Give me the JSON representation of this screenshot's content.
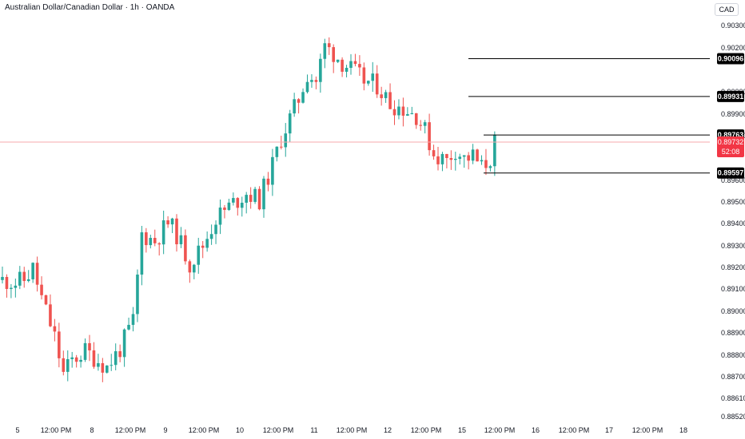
{
  "header": {
    "title": "Australian Dollar/Canadian Dollar · 1h · OANDA",
    "currency_label": "CAD"
  },
  "colors": {
    "up": "#26a69a",
    "down": "#ef5350",
    "level_line": "#000000",
    "level_label_bg": "#000000",
    "price_label_bg": "#f23645",
    "grid": "#ffffff",
    "price_line": "#f7a8ad"
  },
  "chart_data": {
    "type": "candlestick",
    "title": "Australian Dollar/Canadian Dollar · 1h · OANDA",
    "x_ticks": [
      "5",
      "12:00 PM",
      "8",
      "12:00 PM",
      "9",
      "12:00 PM",
      "10",
      "12:00 PM",
      "11",
      "12:00 PM",
      "12",
      "12:00 PM",
      "15",
      "12:00 PM",
      "16",
      "12:00 PM",
      "17",
      "12:00 PM",
      "18"
    ],
    "y_ticks": [
      "0.90300",
      "0.90200",
      "0.90000",
      "0.89900",
      "0.89800",
      "0.89600",
      "0.89500",
      "0.89400",
      "0.89300",
      "0.89200",
      "0.89100",
      "0.89000",
      "0.88900",
      "0.88800",
      "0.88700",
      "0.88610",
      "0.88520"
    ],
    "ylim": [
      0.8852,
      0.9031
    ],
    "last_price": 0.89732,
    "countdown": "52:08",
    "levels": [
      {
        "label": "0.90096",
        "value": 0.90096
      },
      {
        "label": "0.89931",
        "value": 0.89931
      },
      {
        "label": "0.89763",
        "value": 0.89763
      },
      {
        "label": "0.89597",
        "value": 0.89597
      }
    ],
    "path_points": [
      [
        0,
        0.8913
      ],
      [
        3,
        0.8912
      ],
      [
        5,
        0.8913
      ],
      [
        7,
        0.8918
      ],
      [
        9,
        0.8905
      ],
      [
        12,
        0.8888
      ],
      [
        14,
        0.8872
      ],
      [
        16,
        0.8878
      ],
      [
        19,
        0.8882
      ],
      [
        22,
        0.8878
      ],
      [
        24,
        0.8875
      ],
      [
        27,
        0.8883
      ],
      [
        30,
        0.8895
      ],
      [
        32,
        0.8933
      ],
      [
        35,
        0.893
      ],
      [
        38,
        0.8938
      ],
      [
        40,
        0.8933
      ],
      [
        43,
        0.892
      ],
      [
        46,
        0.8928
      ],
      [
        49,
        0.894
      ],
      [
        52,
        0.8945
      ],
      [
        56,
        0.8951
      ],
      [
        59,
        0.8948
      ],
      [
        62,
        0.8963
      ],
      [
        64,
        0.8975
      ],
      [
        68,
        0.8992
      ],
      [
        70,
        0.9003
      ],
      [
        72,
        0.9
      ],
      [
        74,
        0.9015
      ],
      [
        76,
        0.9012
      ],
      [
        78,
        0.9008
      ],
      [
        80,
        0.9005
      ],
      [
        83,
        0.9
      ],
      [
        86,
        0.8998
      ],
      [
        89,
        0.899
      ],
      [
        92,
        0.8988
      ],
      [
        95,
        0.8985
      ],
      [
        97,
        0.8978
      ],
      [
        99,
        0.8968
      ],
      [
        102,
        0.8965
      ],
      [
        104,
        0.897
      ],
      [
        106,
        0.8966
      ],
      [
        108,
        0.8967
      ],
      [
        110,
        0.8962
      ],
      [
        112,
        0.8966
      ],
      [
        113,
        0.8973
      ]
    ]
  }
}
